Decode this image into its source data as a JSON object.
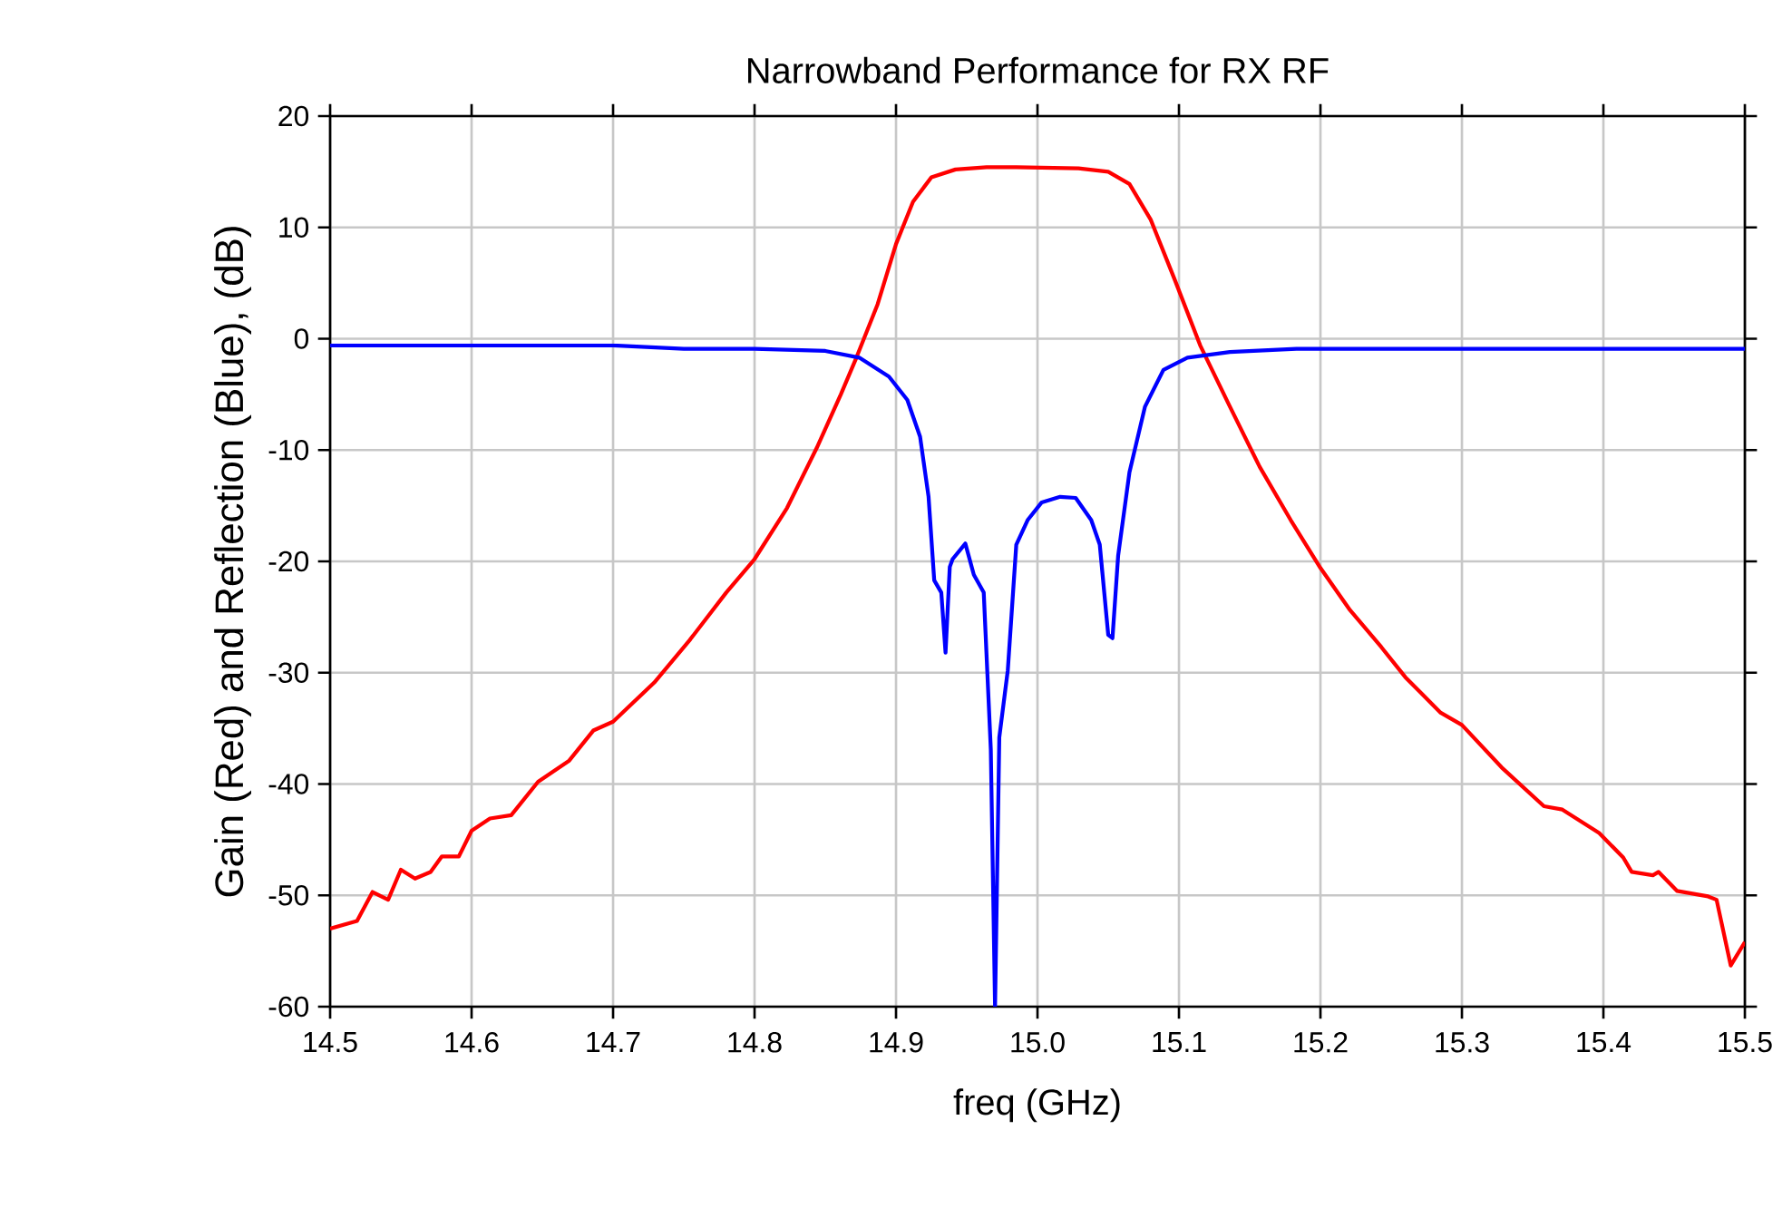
{
  "chart_data": {
    "type": "line",
    "title": "Narrowband Performance for RX RF",
    "xlabel": "freq (GHz)",
    "ylabel": "Gain (Red) and Reflection (Blue), (dB)",
    "xlim": [
      14.5,
      15.5
    ],
    "ylim": [
      -60,
      20
    ],
    "xticks": [
      14.5,
      14.6,
      14.7,
      14.8,
      14.9,
      {
        "value": 15,
        "label": "15.0"
      },
      15.1,
      15.2,
      15.3,
      15.4,
      15.5
    ],
    "yticks": [
      -60,
      -50,
      -40,
      -30,
      -20,
      -10,
      0,
      10,
      20
    ],
    "grid": true,
    "line_style": "solid",
    "series": [
      {
        "color": "#ff0000",
        "x": [
          14.5,
          14.519,
          14.53,
          14.541,
          14.55,
          14.56,
          14.571,
          14.579,
          14.591,
          14.6,
          14.613,
          14.628,
          14.647,
          14.669,
          14.686,
          14.7,
          14.729,
          14.754,
          14.78,
          14.8,
          14.823,
          14.844,
          14.861,
          14.872,
          14.887,
          14.9,
          14.912,
          14.925,
          14.942,
          14.964,
          14.985,
          15.029,
          15.05,
          15.065,
          15.08,
          15.097,
          15.115,
          15.136,
          15.157,
          15.179,
          15.2,
          15.221,
          15.243,
          15.26,
          15.285,
          15.3,
          15.328,
          15.358,
          15.371,
          15.397,
          15.414,
          15.42,
          15.435,
          15.439,
          15.452,
          15.474,
          15.48,
          15.49,
          15.5
        ],
        "values": [
          -53.0,
          -52.3,
          -49.7,
          -50.4,
          -47.7,
          -48.5,
          -47.9,
          -46.5,
          -46.5,
          -44.2,
          -43.1,
          -42.8,
          -39.8,
          -37.9,
          -35.2,
          -34.4,
          -30.9,
          -27.1,
          -22.8,
          -19.8,
          -15.2,
          -9.8,
          -5.0,
          -1.7,
          3.1,
          8.5,
          12.3,
          14.5,
          15.2,
          15.4,
          15.4,
          15.3,
          15.0,
          13.9,
          10.7,
          5.3,
          -0.6,
          -6.1,
          -11.5,
          -16.3,
          -20.6,
          -24.4,
          -27.7,
          -30.4,
          -33.6,
          -34.7,
          -38.5,
          -42.0,
          -42.3,
          -44.4,
          -46.6,
          -47.9,
          -48.2,
          -47.9,
          -49.6,
          -50.1,
          -50.4,
          -56.3,
          -54.2
        ]
      },
      {
        "color": "#0000ff",
        "x": [
          14.5,
          14.7,
          14.75,
          14.8,
          14.85,
          14.874,
          14.895,
          14.908,
          14.917,
          14.923,
          14.927,
          14.932,
          14.935,
          14.938,
          14.94,
          14.949,
          14.955,
          14.962,
          14.967,
          14.97,
          14.973,
          14.979,
          14.985,
          14.993,
          15.003,
          15.016,
          15.027,
          15.038,
          15.044,
          15.05,
          15.053,
          15.057,
          15.065,
          15.076,
          15.089,
          15.106,
          15.136,
          15.183,
          15.5
        ],
        "values": [
          -0.6,
          -0.6,
          -0.9,
          -0.9,
          -1.1,
          -1.7,
          -3.4,
          -5.5,
          -8.8,
          -14.2,
          -21.7,
          -22.8,
          -28.2,
          -20.5,
          -19.8,
          -18.4,
          -21.2,
          -22.8,
          -36.9,
          -60,
          -35.8,
          -29.8,
          -18.5,
          -16.3,
          -14.7,
          -14.2,
          -14.3,
          -16.3,
          -18.5,
          -26.6,
          -26.9,
          -19.5,
          -12.0,
          -6.1,
          -2.8,
          -1.7,
          -1.2,
          -0.9,
          -0.9
        ]
      }
    ]
  }
}
